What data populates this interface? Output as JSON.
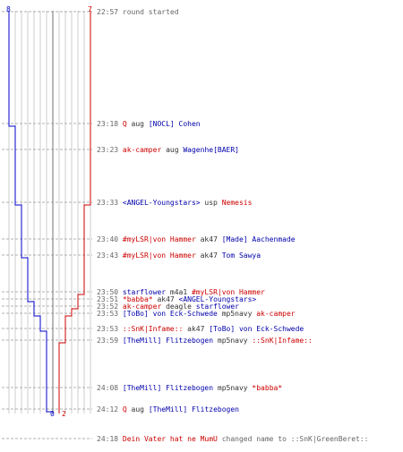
{
  "graph": {
    "team_left": {
      "start_label": "8",
      "end_label": "0",
      "color": "#0000cc"
    },
    "team_right": {
      "start_label": "7",
      "end_label": "2",
      "color": "#cc0000"
    },
    "axis_color": "#888888",
    "grid_color": "#cccccc",
    "dash_color": "#999999"
  },
  "events": [
    {
      "time": "22:57",
      "parts": [
        {
          "t": "round started",
          "c": "#666666"
        }
      ]
    },
    {
      "time": "23:18",
      "parts": [
        {
          "t": "Q",
          "c": "#cc0000"
        },
        {
          "t": " aug ",
          "c": "#333333"
        },
        {
          "t": "[NOCL] Cohen",
          "c": "#0000aa"
        }
      ]
    },
    {
      "time": "23:23",
      "parts": [
        {
          "t": "ak-camper",
          "c": "#cc0000"
        },
        {
          "t": " aug ",
          "c": "#333333"
        },
        {
          "t": "Wagenhe[BAER]",
          "c": "#0000aa"
        }
      ]
    },
    {
      "time": "23:33",
      "parts": [
        {
          "t": "<ANGEL-Youngstars>",
          "c": "#0000aa"
        },
        {
          "t": " usp ",
          "c": "#333333"
        },
        {
          "t": "Nemesis",
          "c": "#cc0000"
        }
      ]
    },
    {
      "time": "23:40",
      "parts": [
        {
          "t": "#myLSR|von Hammer",
          "c": "#cc0000"
        },
        {
          "t": " ak47 ",
          "c": "#333333"
        },
        {
          "t": "[Made] Aachenmade",
          "c": "#0000aa"
        }
      ]
    },
    {
      "time": "23:43",
      "parts": [
        {
          "t": "#myLSR|von Hammer",
          "c": "#cc0000"
        },
        {
          "t": " ak47 ",
          "c": "#333333"
        },
        {
          "t": "Tom Sawya",
          "c": "#0000aa"
        }
      ]
    },
    {
      "time": "23:50",
      "parts": [
        {
          "t": "starflower",
          "c": "#0000aa"
        },
        {
          "t": " m4a1 ",
          "c": "#333333"
        },
        {
          "t": "#myLSR|von Hammer",
          "c": "#cc0000"
        }
      ]
    },
    {
      "time": "23:51",
      "parts": [
        {
          "t": "*babba*",
          "c": "#cc0000"
        },
        {
          "t": " ak47 ",
          "c": "#333333"
        },
        {
          "t": "<ANGEL-Youngstars>",
          "c": "#0000aa"
        }
      ]
    },
    {
      "time": "23:52",
      "parts": [
        {
          "t": "ak-camper",
          "c": "#cc0000"
        },
        {
          "t": " deagle ",
          "c": "#333333"
        },
        {
          "t": "starflower",
          "c": "#0000aa"
        }
      ]
    },
    {
      "time": "23:53",
      "parts": [
        {
          "t": "[ToBo] von Eck-Schwede",
          "c": "#0000aa"
        },
        {
          "t": " mp5navy ",
          "c": "#333333"
        },
        {
          "t": "ak-camper",
          "c": "#cc0000"
        }
      ]
    },
    {
      "time": "23:53",
      "parts": [
        {
          "t": "::SnK|Infame::",
          "c": "#cc0000"
        },
        {
          "t": " ak47 ",
          "c": "#333333"
        },
        {
          "t": "[ToBo] von Eck-Schwede",
          "c": "#0000aa"
        }
      ]
    },
    {
      "time": "23:59",
      "parts": [
        {
          "t": "[TheMill] Flitzebogen",
          "c": "#0000aa"
        },
        {
          "t": " mp5navy ",
          "c": "#333333"
        },
        {
          "t": "::SnK|Infame::",
          "c": "#cc0000"
        }
      ]
    },
    {
      "time": "24:08",
      "parts": [
        {
          "t": "[TheMill] Flitzebogen",
          "c": "#0000aa"
        },
        {
          "t": " mp5navy ",
          "c": "#333333"
        },
        {
          "t": "*babba*",
          "c": "#cc0000"
        }
      ]
    },
    {
      "time": "24:12",
      "parts": [
        {
          "t": "Q",
          "c": "#cc0000"
        },
        {
          "t": " aug ",
          "c": "#333333"
        },
        {
          "t": "[TheMill] Flitzebogen",
          "c": "#0000aa"
        }
      ]
    },
    {
      "time": "24:18",
      "parts": [
        {
          "t": "Dein Vater hat ne MumU",
          "c": "#cc0000"
        },
        {
          "t": " changed name to ",
          "c": "#666666"
        },
        {
          "t": "::SnK|GreenBeret::",
          "c": "#666666"
        }
      ]
    }
  ]
}
